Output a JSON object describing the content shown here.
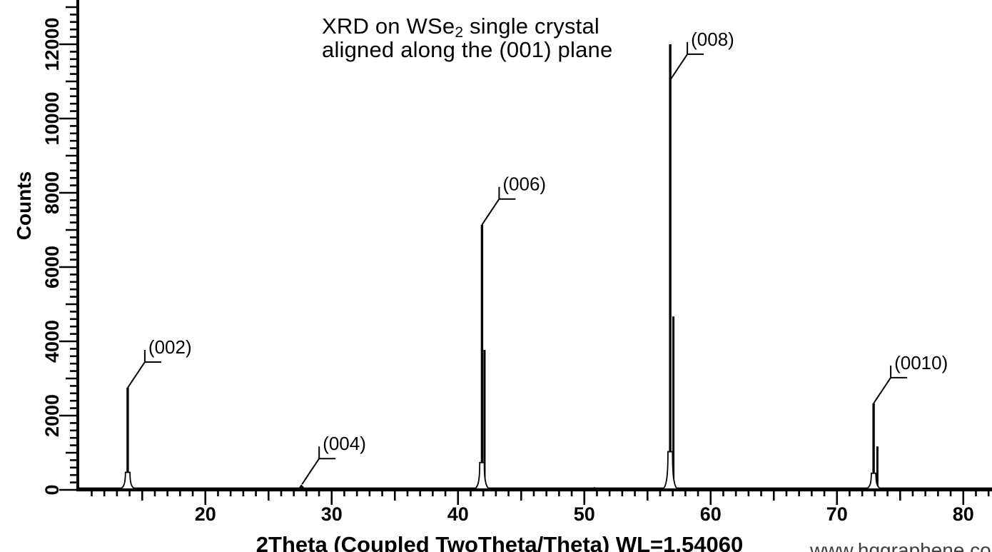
{
  "colors": {
    "ink": "#000000",
    "watermark": "#3d3d3d",
    "background": "#ffffff"
  },
  "chart_data": {
    "type": "line",
    "title_line1": {
      "pre": "XRD on WSe",
      "sub": "2",
      "post": " single crystal"
    },
    "title_line2": "aligned along the (001) plane",
    "xlabel": "2Theta (Coupled TwoTheta/Theta) WL=1.54060",
    "ylabel": "Counts",
    "watermark": "www.hqgraphene.com",
    "x_axis": {
      "min": 9.9,
      "max": 82.2,
      "minor_tick_step": 1,
      "mid_tick_step": 5,
      "major_tick_step": 10,
      "minor_start": 11,
      "minor_end": 82,
      "major_labels": [
        20,
        30,
        40,
        50,
        60,
        70,
        80
      ]
    },
    "y_axis": {
      "min": 0,
      "max": 13200,
      "minor_tick_step": 200,
      "mid_tick_step": 1000,
      "major_tick_step": 2000,
      "major_labels": [
        0,
        2000,
        4000,
        6000,
        8000,
        10000,
        12000
      ]
    },
    "peaks": [
      {
        "label": "(002)",
        "two_theta": 13.85,
        "counts": 2750,
        "callout_attach_counts": 2750
      },
      {
        "label": "(004)",
        "two_theta": 27.65,
        "counts": 150,
        "callout_attach_counts": 150
      },
      {
        "label": "(006)",
        "two_theta": 41.9,
        "counts": 7140,
        "ka2_two_theta": 42.1,
        "ka2_counts": 3770,
        "callout_attach_counts": 7140
      },
      {
        "label": "(008)",
        "two_theta": 56.8,
        "counts": 12000,
        "ka2_two_theta": 57.05,
        "ka2_counts": 4670,
        "callout_attach_counts": 11040
      },
      {
        "label": "(0010)",
        "two_theta": 72.9,
        "counts": 2330,
        "ka2_two_theta": 73.2,
        "ka2_counts": 1170,
        "callout_attach_counts": 2330
      }
    ],
    "noise_bumps": [
      {
        "two_theta": 50.8,
        "counts": 80
      }
    ]
  }
}
